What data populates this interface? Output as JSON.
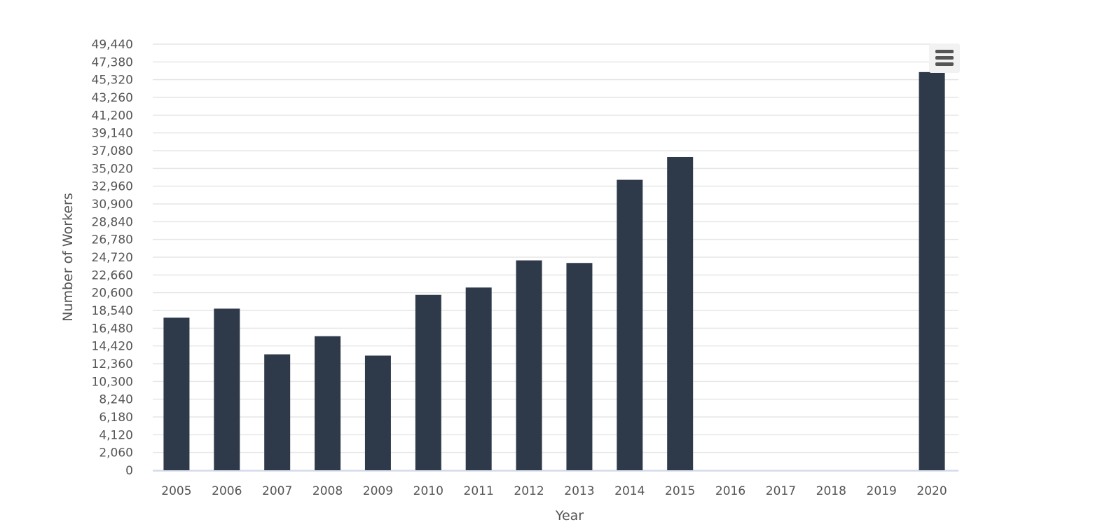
{
  "chart_data": {
    "type": "bar",
    "categories": [
      "2005",
      "2006",
      "2007",
      "2008",
      "2009",
      "2010",
      "2011",
      "2012",
      "2013",
      "2014",
      "2015",
      "2016",
      "2017",
      "2018",
      "2019",
      "2020"
    ],
    "values": [
      17700,
      18750,
      13450,
      15550,
      13300,
      20350,
      21200,
      24350,
      24050,
      33700,
      36350,
      null,
      null,
      null,
      null,
      46200
    ],
    "xlabel": "Year",
    "ylabel": "Number of Workers",
    "ylim": [
      0,
      49440
    ],
    "yticks": [
      0,
      2060,
      4120,
      6180,
      8240,
      10300,
      12360,
      14420,
      16480,
      18540,
      20600,
      22660,
      24720,
      26780,
      28840,
      30900,
      32960,
      35020,
      37080,
      39140,
      41200,
      43260,
      45320,
      47380,
      49440
    ],
    "ytick_labels": [
      "0",
      "2,060",
      "4,120",
      "6,180",
      "8,240",
      "10,300",
      "12,360",
      "14,420",
      "16,480",
      "18,540",
      "20,600",
      "22,660",
      "24,720",
      "26,780",
      "28,840",
      "30,900",
      "32,960",
      "35,020",
      "37,080",
      "39,140",
      "41,200",
      "43,260",
      "45,320",
      "47,380",
      "49,440"
    ],
    "bar_color": "#2e3a4a",
    "grid": true,
    "legend": "none"
  },
  "menu": {
    "icon": "hamburger-menu-icon"
  }
}
